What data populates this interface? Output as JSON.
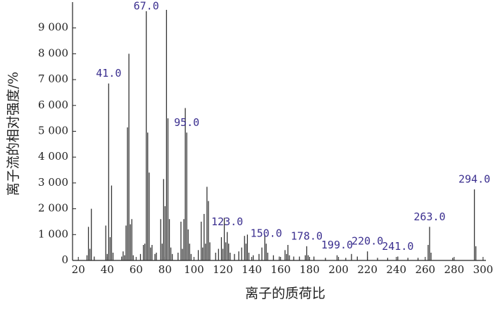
{
  "chart_data": {
    "type": "bar",
    "x_label": "离子的质荷比",
    "y_label": "离子流的相对强度/%",
    "color": "#333333",
    "annotation_color": "#3b2f8f",
    "xlim": [
      16,
      302
    ],
    "ylim": [
      0,
      10000
    ],
    "xticks": [
      20,
      40,
      60,
      80,
      100,
      120,
      140,
      160,
      180,
      200,
      220,
      240,
      260,
      280,
      300
    ],
    "yticks": [
      0,
      {
        "value": 1000,
        "label": "1 000"
      },
      {
        "value": 2000,
        "label": "2 000"
      },
      {
        "value": 3000,
        "label": "3 000"
      },
      {
        "value": 4000,
        "label": "4 000"
      },
      {
        "value": 5000,
        "label": "5 000"
      },
      {
        "value": 6000,
        "label": "6 000"
      },
      {
        "value": 7000,
        "label": "7 000"
      },
      {
        "value": 8000,
        "label": "8 000"
      },
      {
        "value": 9000,
        "label": "9 000"
      }
    ],
    "x": [
      26,
      27,
      28,
      29,
      31,
      39,
      40,
      41,
      42,
      43,
      44,
      50,
      51,
      52,
      53,
      54,
      55,
      56,
      57,
      58,
      63,
      65,
      66,
      67,
      68,
      69,
      70,
      71,
      73,
      74,
      77,
      78,
      79,
      80,
      81,
      82,
      83,
      84,
      85,
      89,
      91,
      92,
      93,
      94,
      95,
      96,
      97,
      98,
      103,
      105,
      106,
      107,
      108,
      109,
      110,
      111,
      115,
      117,
      119,
      120,
      121,
      122,
      123,
      124,
      125,
      128,
      131,
      133,
      135,
      136,
      137,
      138,
      141,
      145,
      147,
      149,
      150,
      151,
      155,
      159,
      163,
      164,
      165,
      166,
      169,
      173,
      177,
      178,
      179,
      183,
      191,
      199,
      205,
      209,
      213,
      220,
      227,
      234,
      241,
      248,
      255,
      262,
      263,
      264,
      279,
      294,
      295
    ],
    "values": [
      200,
      1300,
      450,
      2000,
      150,
      1350,
      250,
      6850,
      900,
      2900,
      300,
      150,
      350,
      200,
      1350,
      5150,
      8000,
      1400,
      1600,
      200,
      250,
      600,
      650,
      9650,
      4950,
      3400,
      500,
      600,
      250,
      300,
      1600,
      650,
      3150,
      2100,
      9700,
      5500,
      1600,
      500,
      250,
      300,
      1500,
      450,
      1600,
      5900,
      4950,
      1200,
      650,
      250,
      400,
      1500,
      500,
      1800,
      650,
      2850,
      2300,
      700,
      300,
      450,
      900,
      450,
      1650,
      700,
      1100,
      650,
      300,
      250,
      350,
      500,
      950,
      650,
      1000,
      300,
      200,
      250,
      500,
      1000,
      650,
      300,
      200,
      150,
      400,
      250,
      600,
      200,
      150,
      150,
      200,
      550,
      200,
      150,
      100,
      200,
      100,
      250,
      150,
      350,
      100,
      100,
      150,
      100,
      100,
      600,
      1300,
      300,
      100,
      2750,
      550
    ],
    "annotations": [
      {
        "x": 41,
        "label": "41.0"
      },
      {
        "x": 67,
        "label": "67.0"
      },
      {
        "x": 95,
        "label": "95.0"
      },
      {
        "x": 123,
        "label": "123.0"
      },
      {
        "x": 150,
        "label": "150.0"
      },
      {
        "x": 178,
        "label": "178.0"
      },
      {
        "x": 199,
        "label": "199.0"
      },
      {
        "x": 220,
        "label": "220.0"
      },
      {
        "x": 241,
        "label": "241.0"
      },
      {
        "x": 263,
        "label": "263.0"
      },
      {
        "x": 294,
        "label": "294.0"
      }
    ]
  }
}
